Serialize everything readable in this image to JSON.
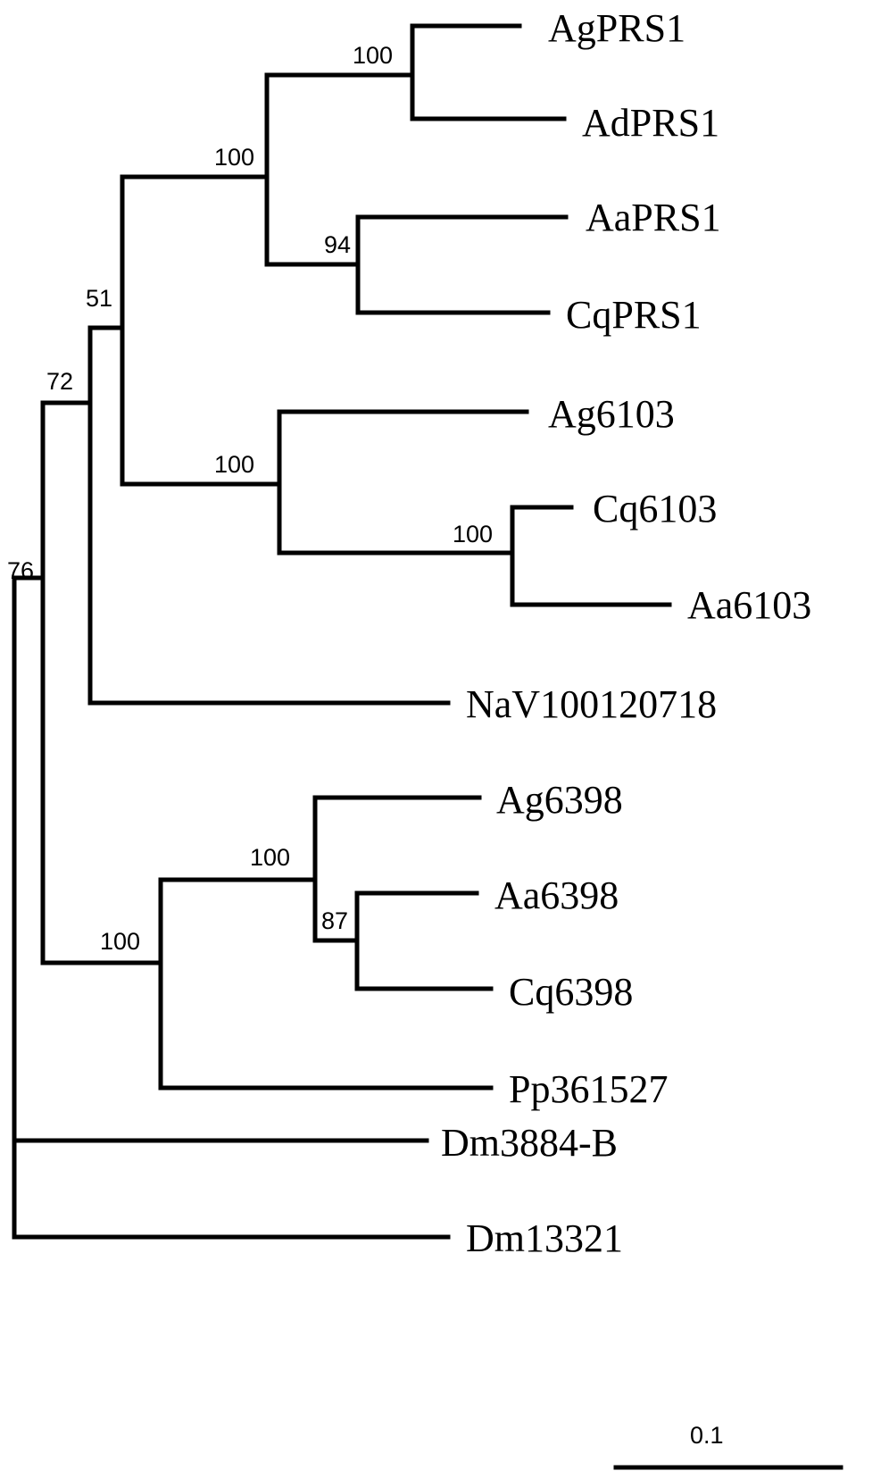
{
  "tree": {
    "leaves": [
      "AgPRS1",
      "AdPRS1",
      "AaPRS1",
      "CqPRS1",
      "Ag6103",
      "Cq6103",
      "Aa6103",
      "NaV100120718",
      "Ag6398",
      "Aa6398",
      "Cq6398",
      "Pp361527",
      "Dm3884-B",
      "Dm13321"
    ],
    "support_values": [
      "100",
      "100",
      "94",
      "51",
      "72",
      "100",
      "100",
      "76",
      "100",
      "87",
      "100"
    ],
    "scale_bar": {
      "label": "0.1"
    }
  }
}
